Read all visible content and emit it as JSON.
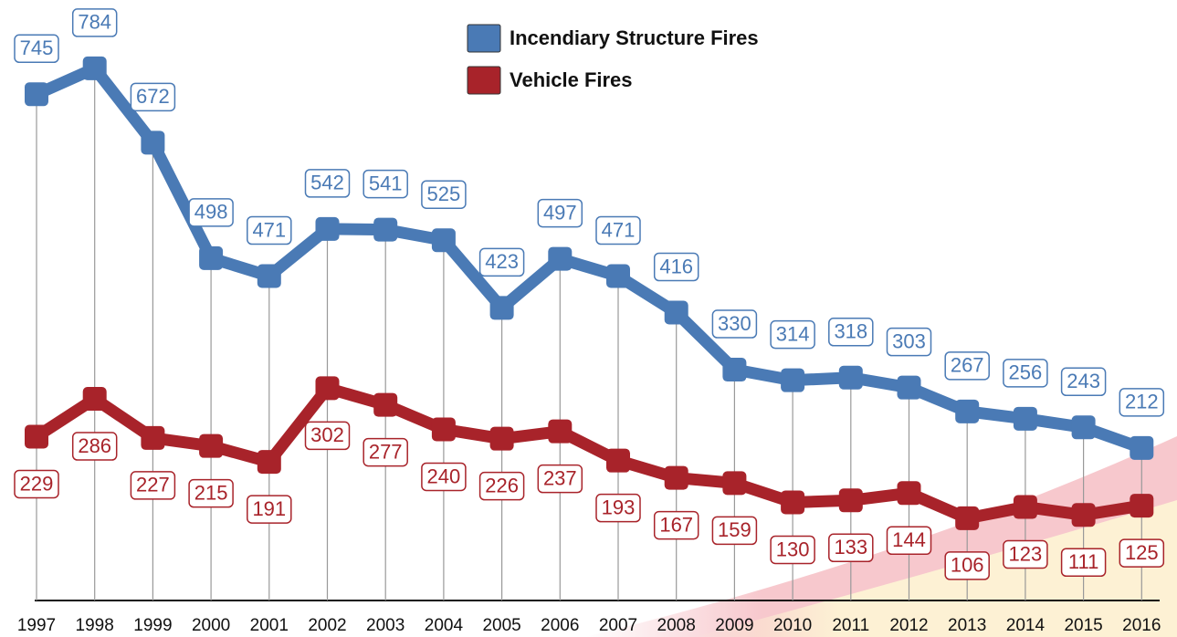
{
  "chart_data": {
    "type": "line",
    "categories": [
      "1997",
      "1998",
      "1999",
      "2000",
      "2001",
      "2002",
      "2003",
      "2004",
      "2005",
      "2006",
      "2007",
      "2008",
      "2009",
      "2010",
      "2011",
      "2012",
      "2013",
      "2014",
      "2015",
      "2016"
    ],
    "series": [
      {
        "name": "Incendiary Structure Fires",
        "color": "#4a7ab5",
        "values": [
          745,
          784,
          672,
          498,
          471,
          542,
          541,
          525,
          423,
          497,
          471,
          416,
          330,
          314,
          318,
          303,
          267,
          256,
          243,
          212
        ]
      },
      {
        "name": "Vehicle Fires",
        "color": "#a8232a",
        "values": [
          229,
          286,
          227,
          215,
          191,
          302,
          277,
          240,
          226,
          237,
          193,
          167,
          159,
          130,
          133,
          144,
          106,
          123,
          111,
          125
        ]
      }
    ],
    "ylim": [
      0,
      887
    ],
    "legend": "top-center"
  }
}
